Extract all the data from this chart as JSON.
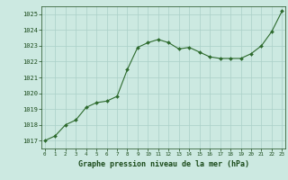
{
  "hours": [
    0,
    1,
    2,
    3,
    4,
    5,
    6,
    7,
    8,
    9,
    10,
    11,
    12,
    13,
    14,
    15,
    16,
    17,
    18,
    19,
    20,
    21,
    22,
    23
  ],
  "pressure": [
    1017.0,
    1017.3,
    1018.0,
    1018.3,
    1019.1,
    1019.4,
    1019.5,
    1019.8,
    1021.5,
    1022.9,
    1023.2,
    1023.4,
    1023.2,
    1022.8,
    1022.9,
    1022.6,
    1022.3,
    1022.2,
    1022.2,
    1022.2,
    1022.5,
    1023.0,
    1023.9,
    1025.2
  ],
  "ylim": [
    1016.5,
    1025.5
  ],
  "yticks": [
    1017,
    1018,
    1019,
    1020,
    1021,
    1022,
    1023,
    1024,
    1025
  ],
  "xticks": [
    0,
    1,
    2,
    3,
    4,
    5,
    6,
    7,
    8,
    9,
    10,
    11,
    12,
    13,
    14,
    15,
    16,
    17,
    18,
    19,
    20,
    21,
    22,
    23
  ],
  "line_color": "#2d6a2d",
  "marker_color": "#2d6a2d",
  "bg_color": "#cce9e1",
  "grid_color": "#aad0c8",
  "xlabel": "Graphe pression niveau de la mer (hPa)",
  "xlabel_color": "#1a4a1a",
  "tick_color": "#1a4a1a"
}
